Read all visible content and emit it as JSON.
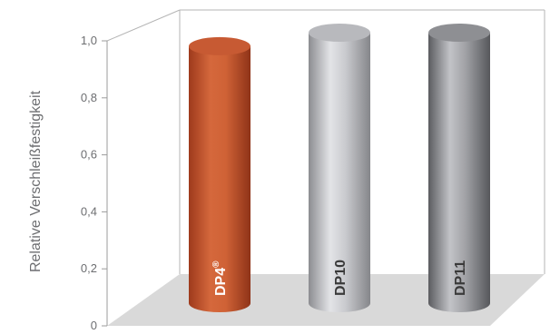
{
  "chart_data": {
    "type": "bar",
    "style": "3d-cylinder",
    "title": "",
    "xlabel": "",
    "ylabel": "Relative Verschleißfestigkeit",
    "ylim": [
      0,
      1
    ],
    "yticks": [
      "0",
      "0,2",
      "0,4",
      "0,6",
      "0,8",
      "1,0"
    ],
    "grid": false,
    "legend": "none",
    "categories": [
      "DP4®",
      "DP10",
      "DP11"
    ],
    "values": [
      0.95,
      1.0,
      1.0
    ],
    "bars": [
      {
        "label_main": "DP4",
        "label_sup": "®",
        "color": "#c75a33",
        "label_color": "#ffffff"
      },
      {
        "label_main": "DP10",
        "label_sup": "",
        "color": "#b8b9bd",
        "label_color": "#3a3a3a"
      },
      {
        "label_main": "DP11",
        "label_sup": "",
        "color": "#8e8f93",
        "label_color": "#3a3a3a"
      }
    ],
    "colors": {
      "axis": "#9b9b9b",
      "floor": "#d9d9d9",
      "text": "#6d6e71"
    }
  }
}
